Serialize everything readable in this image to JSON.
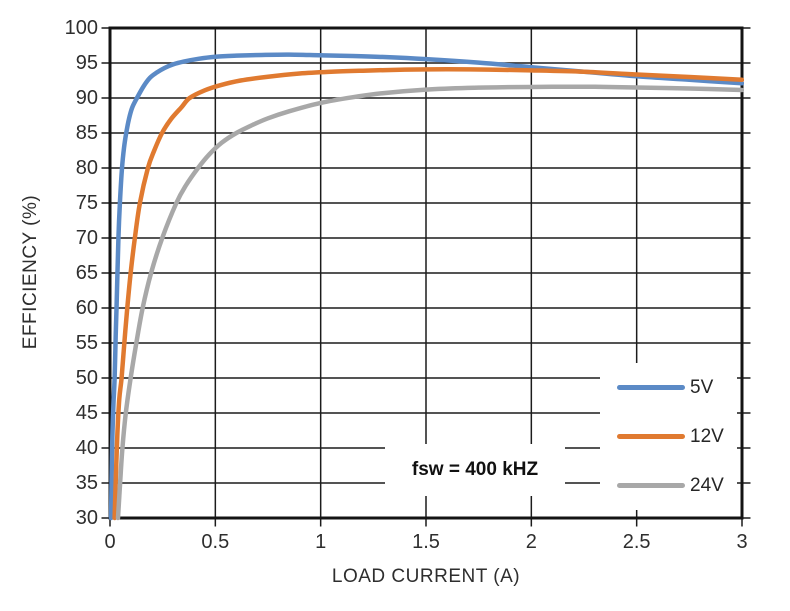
{
  "chart_data": {
    "type": "line",
    "title": "",
    "xlabel": "LOAD CURRENT (A)",
    "ylabel": "EFFICIENCY (%)",
    "xlim": [
      0,
      3
    ],
    "ylim": [
      30,
      100
    ],
    "grid": true,
    "grid_color": "#1c1c1c",
    "frame_color": "#141414",
    "text_color": "#2e2e2e",
    "xticks": {
      "values": [
        0,
        0.5,
        1,
        1.5,
        2,
        2.5,
        3
      ],
      "labels": [
        "0",
        "0.5",
        "1",
        "1.5",
        "2",
        "2.5",
        "3"
      ]
    },
    "yticks": {
      "values": [
        30,
        35,
        40,
        45,
        50,
        55,
        60,
        65,
        70,
        75,
        80,
        85,
        90,
        95,
        100
      ],
      "labels": [
        "30",
        "35",
        "40",
        "45",
        "50",
        "55",
        "60",
        "65",
        "70",
        "75",
        "80",
        "85",
        "90",
        "95",
        "100"
      ]
    },
    "annotation": {
      "text": "fsw = 400 kHZ"
    },
    "legend": {
      "position": "inside-bottom-right",
      "entries": [
        "5V",
        "12V",
        "24V"
      ]
    },
    "series": [
      {
        "name": "5V",
        "color": "#5B8AC6",
        "points": [
          [
            0.005,
            30
          ],
          [
            0.01,
            40
          ],
          [
            0.016,
            46
          ],
          [
            0.022,
            50
          ],
          [
            0.027,
            56
          ],
          [
            0.031,
            60
          ],
          [
            0.04,
            70
          ],
          [
            0.047,
            75
          ],
          [
            0.057,
            80
          ],
          [
            0.067,
            83
          ],
          [
            0.077,
            85
          ],
          [
            0.09,
            87
          ],
          [
            0.105,
            88.6
          ],
          [
            0.128,
            90
          ],
          [
            0.16,
            91.7
          ],
          [
            0.19,
            92.9
          ],
          [
            0.22,
            93.6
          ],
          [
            0.26,
            94.3
          ],
          [
            0.3,
            94.8
          ],
          [
            0.35,
            95.2
          ],
          [
            0.42,
            95.6
          ],
          [
            0.5,
            95.9
          ],
          [
            0.6,
            96.05
          ],
          [
            0.72,
            96.15
          ],
          [
            0.85,
            96.2
          ],
          [
            1.0,
            96.1
          ],
          [
            1.15,
            96.0
          ],
          [
            1.3,
            95.85
          ],
          [
            1.5,
            95.55
          ],
          [
            1.75,
            95.05
          ],
          [
            2.0,
            94.4
          ],
          [
            2.25,
            93.75
          ],
          [
            2.5,
            93.1
          ],
          [
            2.75,
            92.6
          ],
          [
            3.0,
            92.1
          ]
        ]
      },
      {
        "name": "12V",
        "color": "#E07A30",
        "points": [
          [
            0.022,
            30
          ],
          [
            0.028,
            36
          ],
          [
            0.035,
            42
          ],
          [
            0.044,
            47
          ],
          [
            0.055,
            50
          ],
          [
            0.068,
            55
          ],
          [
            0.082,
            60
          ],
          [
            0.098,
            65
          ],
          [
            0.118,
            70
          ],
          [
            0.142,
            75
          ],
          [
            0.18,
            80
          ],
          [
            0.21,
            82.5
          ],
          [
            0.247,
            85
          ],
          [
            0.29,
            87
          ],
          [
            0.34,
            88.7
          ],
          [
            0.378,
            90
          ],
          [
            0.45,
            91.1
          ],
          [
            0.52,
            91.8
          ],
          [
            0.62,
            92.5
          ],
          [
            0.74,
            93.0
          ],
          [
            0.9,
            93.5
          ],
          [
            1.05,
            93.75
          ],
          [
            1.2,
            93.9
          ],
          [
            1.4,
            94.05
          ],
          [
            1.6,
            94.1
          ],
          [
            1.8,
            94.05
          ],
          [
            2.0,
            93.95
          ],
          [
            2.25,
            93.75
          ],
          [
            2.5,
            93.35
          ],
          [
            2.75,
            93.0
          ],
          [
            3.0,
            92.6
          ]
        ]
      },
      {
        "name": "24V",
        "color": "#A8A8A8",
        "points": [
          [
            0.038,
            30
          ],
          [
            0.048,
            35
          ],
          [
            0.059,
            40
          ],
          [
            0.075,
            45
          ],
          [
            0.098,
            50
          ],
          [
            0.125,
            55
          ],
          [
            0.155,
            60
          ],
          [
            0.195,
            65
          ],
          [
            0.248,
            70
          ],
          [
            0.315,
            75
          ],
          [
            0.36,
            77.5
          ],
          [
            0.418,
            80
          ],
          [
            0.47,
            81.9
          ],
          [
            0.53,
            83.6
          ],
          [
            0.6,
            85
          ],
          [
            0.68,
            86.2
          ],
          [
            0.75,
            87.1
          ],
          [
            0.85,
            88.1
          ],
          [
            1.0,
            89.3
          ],
          [
            1.15,
            90.1
          ],
          [
            1.3,
            90.7
          ],
          [
            1.5,
            91.2
          ],
          [
            1.7,
            91.45
          ],
          [
            1.9,
            91.55
          ],
          [
            2.1,
            91.6
          ],
          [
            2.3,
            91.6
          ],
          [
            2.5,
            91.5
          ],
          [
            2.75,
            91.35
          ],
          [
            3.0,
            91.15
          ]
        ]
      }
    ]
  }
}
